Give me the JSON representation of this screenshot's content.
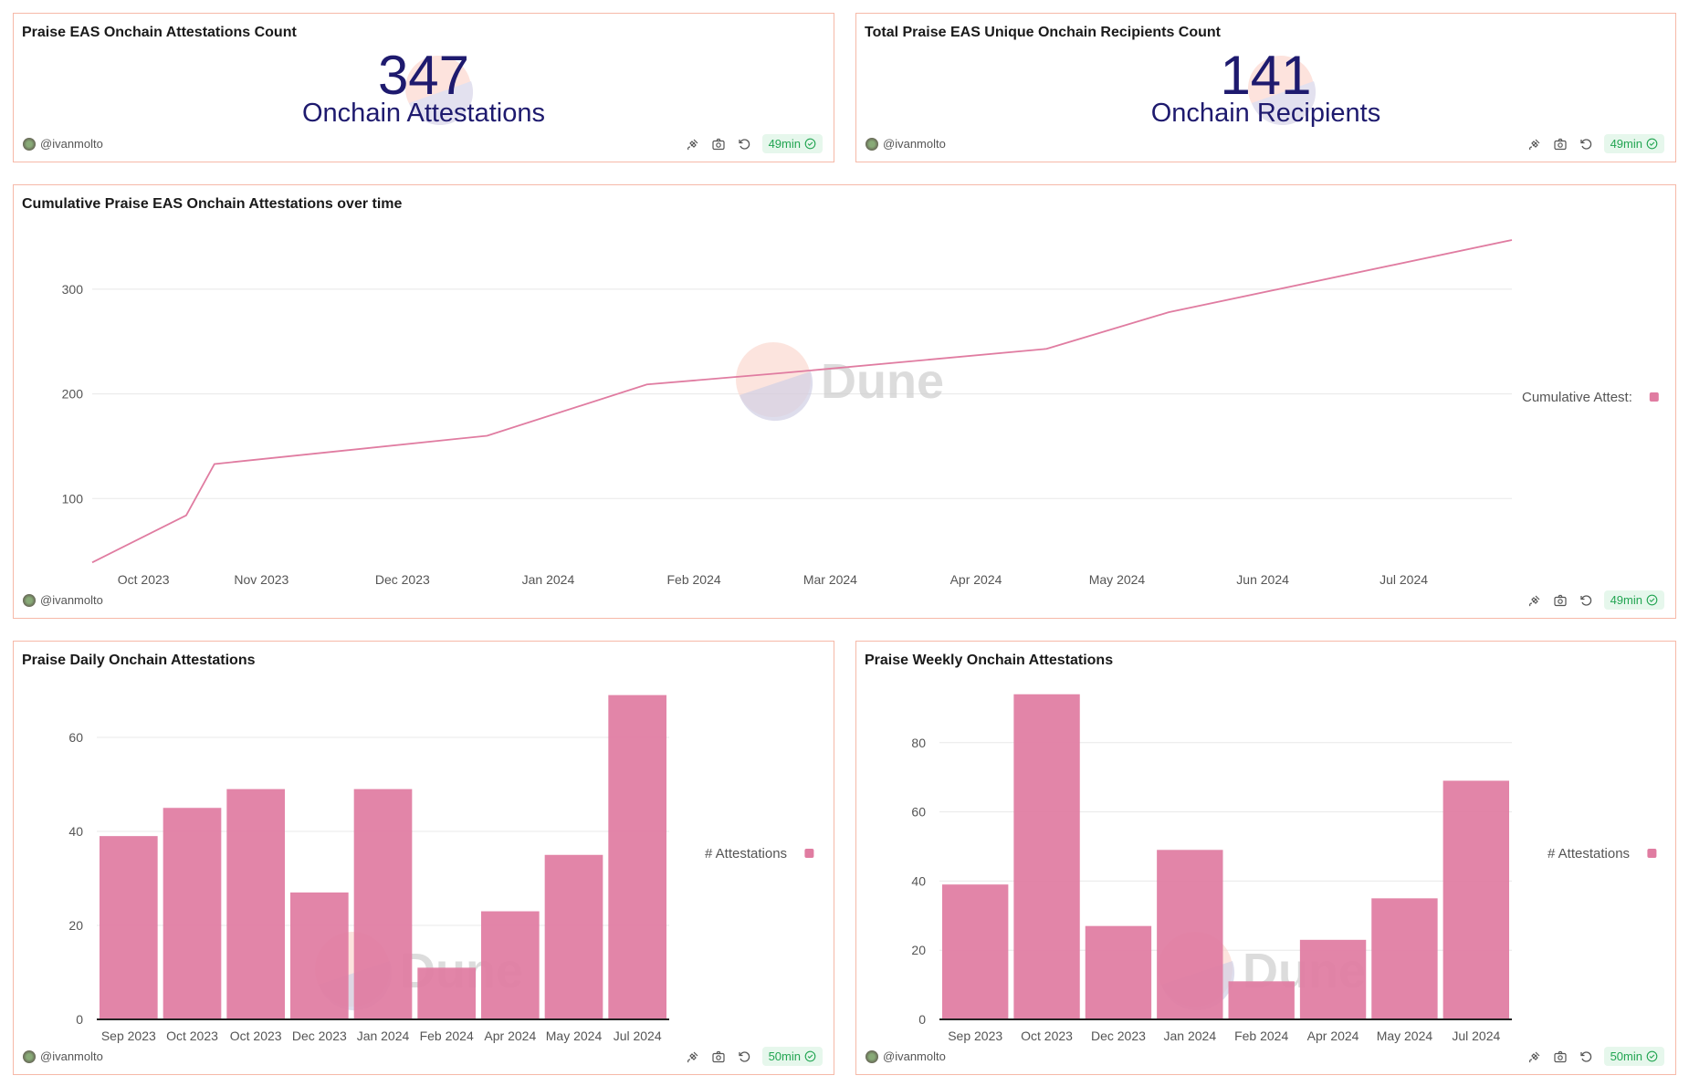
{
  "colors": {
    "accent": "#e07ca1",
    "number": "#1e1a6e",
    "border": "#f6b9a8",
    "badge_text": "#22a552"
  },
  "author": "@ivanmolto",
  "watermark": "Dune",
  "cards": {
    "attestations_count": {
      "title": "Praise EAS Onchain Attestations Count",
      "value": "347",
      "label": "Onchain Attestations",
      "age": "49min"
    },
    "recipients_count": {
      "title": "Total Praise EAS Unique Onchain Recipients Count",
      "value": "141",
      "label": "Onchain Recipients",
      "age": "49min"
    },
    "cumulative": {
      "title": "Cumulative Praise EAS Onchain Attestations over time",
      "age": "49min"
    },
    "daily": {
      "title": "Praise Daily Onchain Attestations",
      "age": "50min"
    },
    "weekly": {
      "title": "Praise Weekly Onchain Attestations",
      "age": "50min"
    }
  },
  "icons": [
    "query-link-icon",
    "camera-icon",
    "refresh-icon",
    "check-badge-icon"
  ],
  "chart_data": [
    {
      "type": "line",
      "legend": "Cumulative Attest:",
      "legend_placement": "right",
      "grid": true,
      "x": [
        "2023-09-26",
        "2023-10-16",
        "2023-10-22",
        "2023-12-19",
        "2024-01-22",
        "2024-02-20",
        "2024-04-16",
        "2024-05-12",
        "2024-07-24"
      ],
      "values": [
        39,
        84,
        133,
        160,
        209,
        220,
        243,
        278,
        347
      ],
      "yticks": [
        100,
        200,
        300
      ],
      "ylim": [
        0,
        347
      ],
      "xticks": [
        "Oct 2023",
        "Nov 2023",
        "Dec 2023",
        "Jan 2024",
        "Feb 2024",
        "Mar 2024",
        "Apr 2024",
        "May 2024",
        "Jun 2024",
        "Jul 2024"
      ]
    },
    {
      "type": "bar",
      "legend": "# Attestations",
      "legend_placement": "right",
      "grid": true,
      "categories": [
        "Sep 2023",
        "Oct 2023",
        "Oct 2023",
        "Dec 2023",
        "Jan 2024",
        "Feb 2024",
        "Apr 2024",
        "May 2024",
        "Jul 2024"
      ],
      "values": [
        39,
        45,
        49,
        27,
        49,
        11,
        23,
        35,
        69
      ],
      "yticks": [
        0,
        20,
        40,
        60
      ],
      "ylim": [
        0,
        69
      ]
    },
    {
      "type": "bar",
      "legend": "# Attestations",
      "legend_placement": "right",
      "grid": true,
      "categories": [
        "Sep 2023",
        "Oct 2023",
        "Dec 2023",
        "Jan 2024",
        "Feb 2024",
        "Apr 2024",
        "May 2024",
        "Jul 2024"
      ],
      "values": [
        39,
        94,
        27,
        49,
        11,
        23,
        35,
        69
      ],
      "yticks": [
        0,
        20,
        40,
        60,
        80
      ],
      "ylim": [
        0,
        94
      ]
    }
  ]
}
